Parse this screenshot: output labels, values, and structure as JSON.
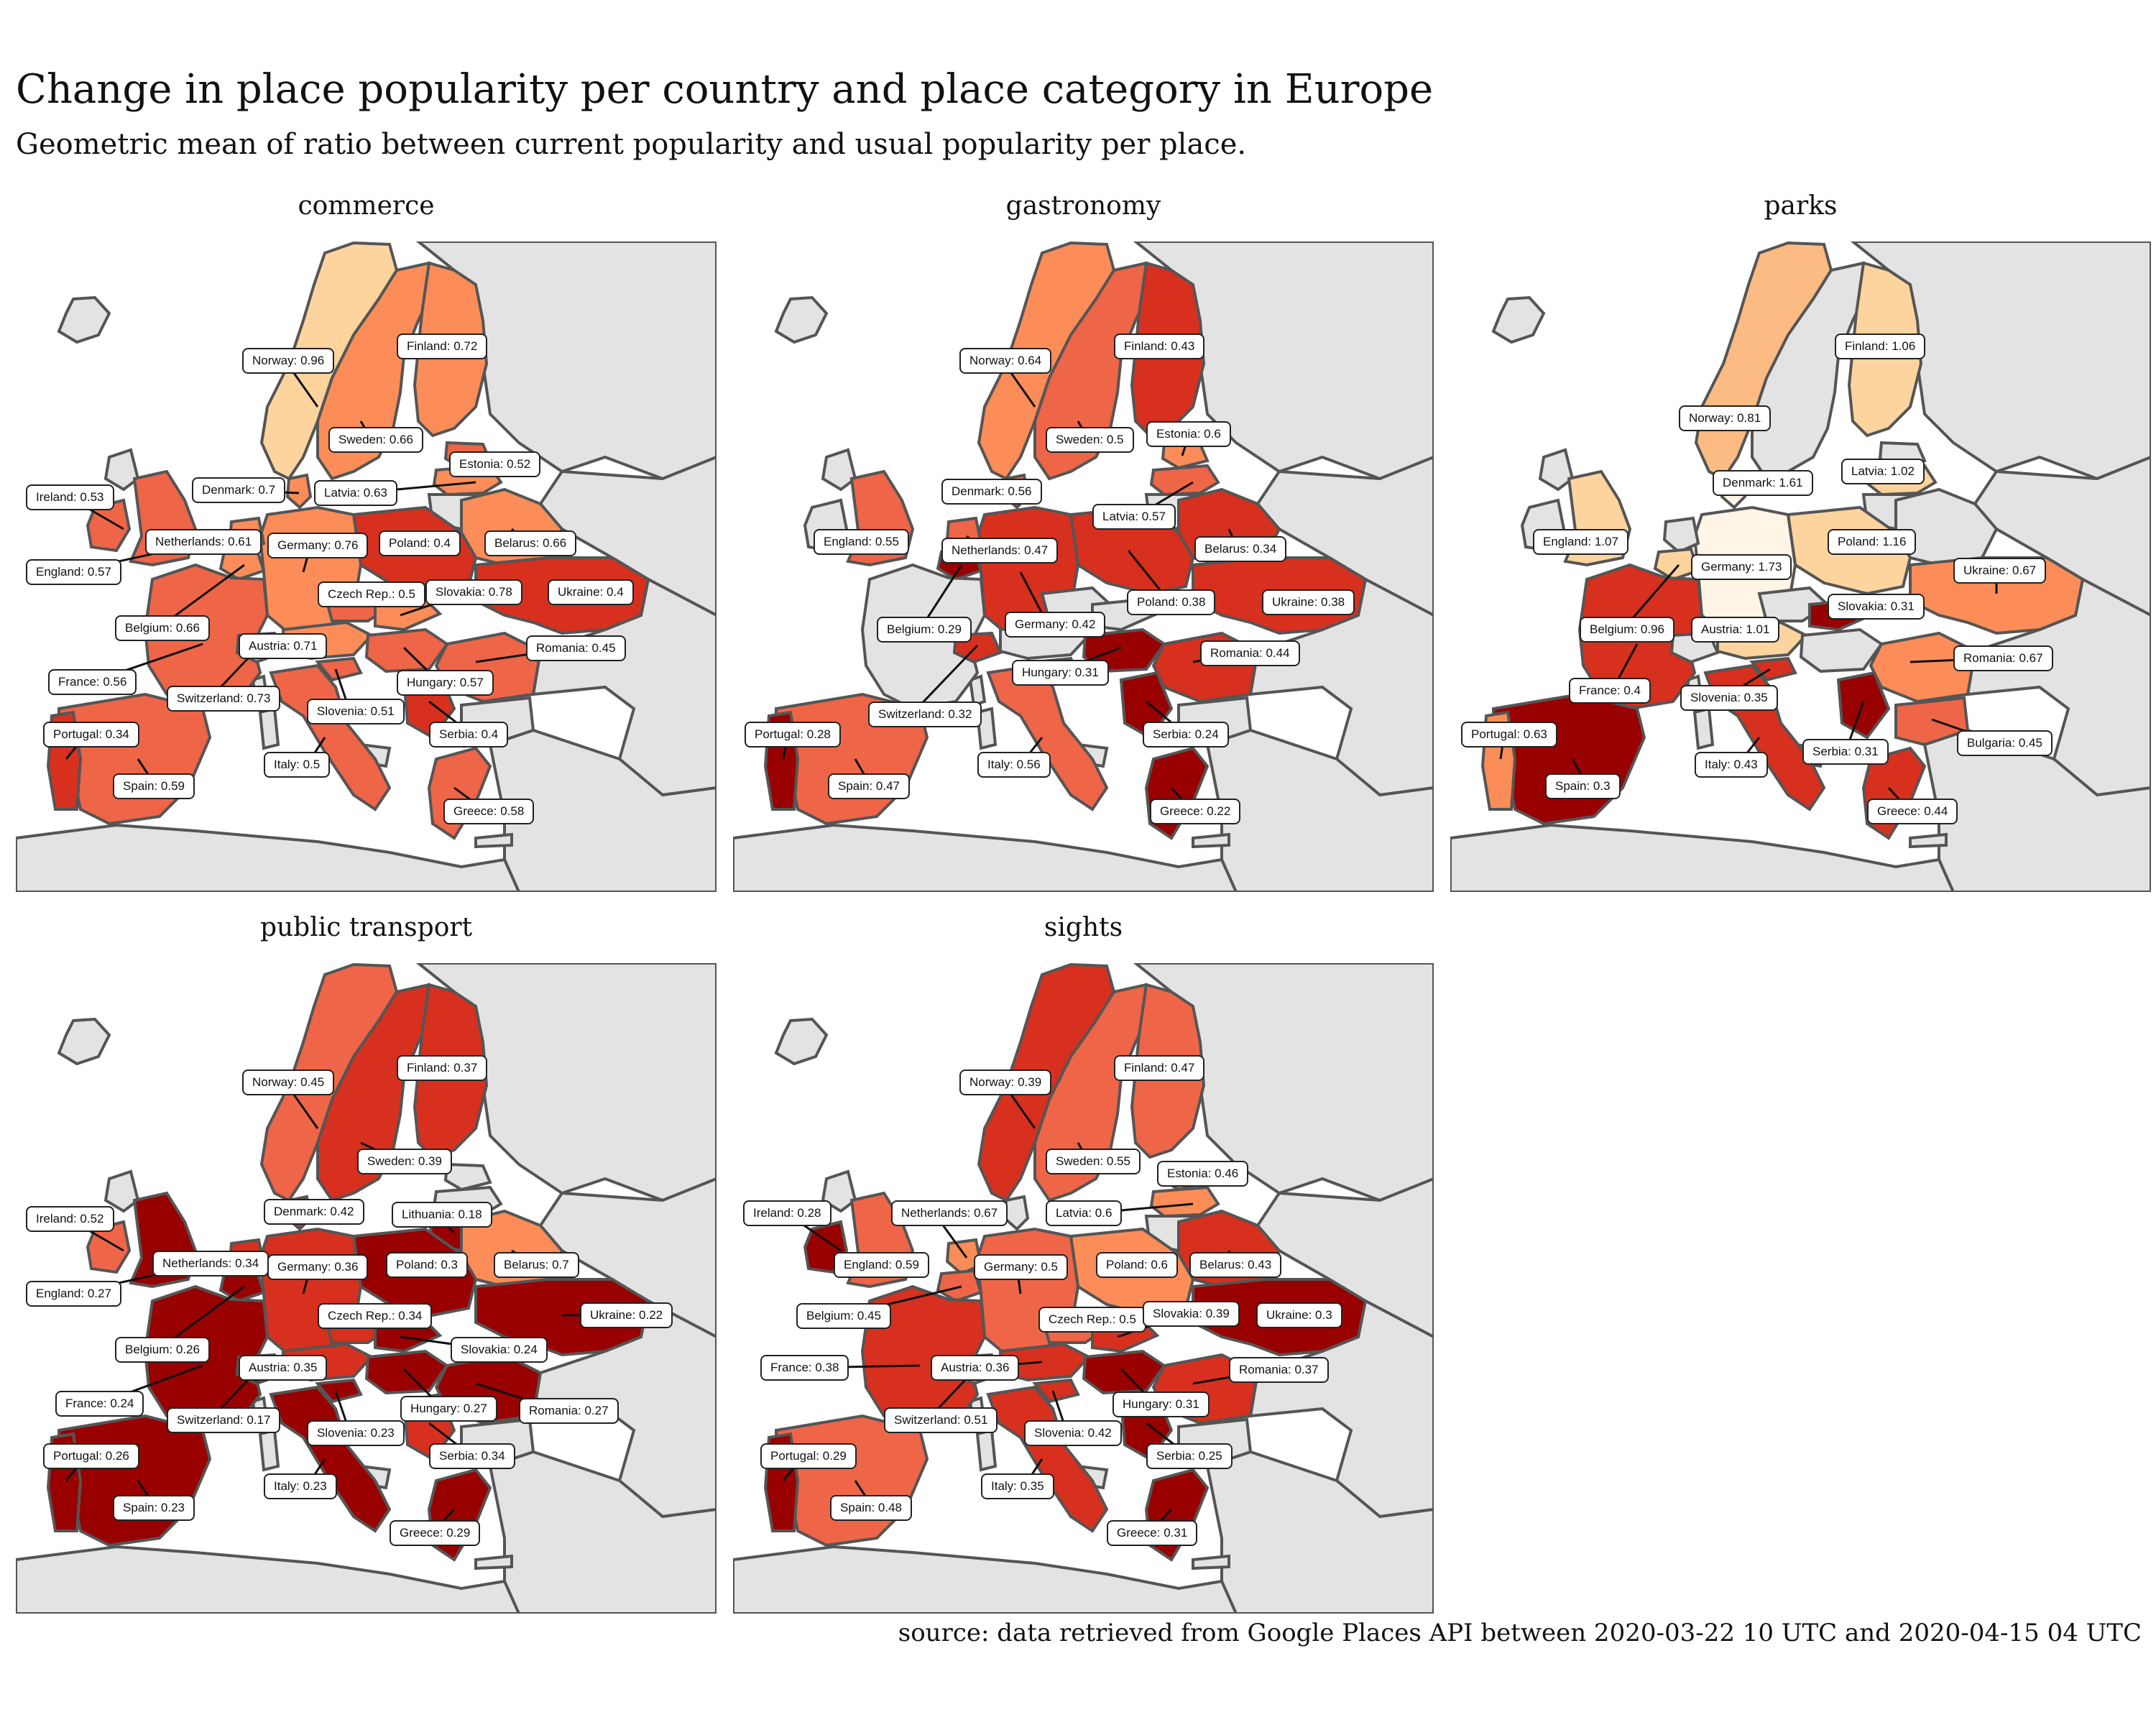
{
  "title": "Change in place popularity per country and place category in Europe",
  "subtitle": "Geometric mean of ratio between current popularity and usual popularity per place.",
  "caption": "source: data retrieved from Google Places API between 2020-03-22 10 UTC and 2020-04-15 04 UTC",
  "colors": {
    "land_other": "#e3e3e3",
    "border": "#555555",
    "sea": "#ffffff",
    "scale": [
      "#fff5e6",
      "#fdd49e",
      "#fdbb84",
      "#fc8d59",
      "#ef6548",
      "#d7301f",
      "#990000"
    ]
  },
  "panels": [
    {
      "title": "commerce",
      "labels": [
        {
          "text": "Norway: 0.96",
          "country": "Norway",
          "value": 0.96
        },
        {
          "text": "Finland: 0.72",
          "country": "Finland",
          "value": 0.72
        },
        {
          "text": "Sweden: 0.66",
          "country": "Sweden",
          "value": 0.66
        },
        {
          "text": "Estonia: 0.52",
          "country": "Estonia",
          "value": 0.52
        },
        {
          "text": "Denmark: 0.7",
          "country": "Denmark",
          "value": 0.7
        },
        {
          "text": "Latvia: 0.63",
          "country": "Latvia",
          "value": 0.63
        },
        {
          "text": "Ireland: 0.53",
          "country": "Ireland",
          "value": 0.53
        },
        {
          "text": "Netherlands: 0.61",
          "country": "Netherlands",
          "value": 0.61
        },
        {
          "text": "Germany: 0.76",
          "country": "Germany",
          "value": 0.76
        },
        {
          "text": "Poland: 0.4",
          "country": "Poland",
          "value": 0.4
        },
        {
          "text": "Belarus: 0.66",
          "country": "Belarus",
          "value": 0.66
        },
        {
          "text": "England: 0.57",
          "country": "England",
          "value": 0.57
        },
        {
          "text": "Czech Rep.: 0.5",
          "country": "Czech Rep.",
          "value": 0.5
        },
        {
          "text": "Slovakia: 0.78",
          "country": "Slovakia",
          "value": 0.78
        },
        {
          "text": "Ukraine: 0.4",
          "country": "Ukraine",
          "value": 0.4
        },
        {
          "text": "Belgium: 0.66",
          "country": "Belgium",
          "value": 0.66
        },
        {
          "text": "Austria: 0.71",
          "country": "Austria",
          "value": 0.71
        },
        {
          "text": "Romania: 0.45",
          "country": "Romania",
          "value": 0.45
        },
        {
          "text": "France: 0.56",
          "country": "France",
          "value": 0.56
        },
        {
          "text": "Hungary: 0.57",
          "country": "Hungary",
          "value": 0.57
        },
        {
          "text": "Switzerland: 0.73",
          "country": "Switzerland",
          "value": 0.73
        },
        {
          "text": "Slovenia: 0.51",
          "country": "Slovenia",
          "value": 0.51
        },
        {
          "text": "Portugal: 0.34",
          "country": "Portugal",
          "value": 0.34
        },
        {
          "text": "Serbia: 0.4",
          "country": "Serbia",
          "value": 0.4
        },
        {
          "text": "Italy: 0.5",
          "country": "Italy",
          "value": 0.5
        },
        {
          "text": "Spain: 0.59",
          "country": "Spain",
          "value": 0.59
        },
        {
          "text": "Greece: 0.58",
          "country": "Greece",
          "value": 0.58
        }
      ]
    },
    {
      "title": "gastronomy",
      "labels": [
        {
          "text": "Norway: 0.64",
          "country": "Norway",
          "value": 0.64
        },
        {
          "text": "Finland: 0.43",
          "country": "Finland",
          "value": 0.43
        },
        {
          "text": "Sweden: 0.5",
          "country": "Sweden",
          "value": 0.5
        },
        {
          "text": "Estonia: 0.6",
          "country": "Estonia",
          "value": 0.6
        },
        {
          "text": "Denmark: 0.56",
          "country": "Denmark",
          "value": 0.56
        },
        {
          "text": "Latvia: 0.57",
          "country": "Latvia",
          "value": 0.57
        },
        {
          "text": "England: 0.55",
          "country": "England",
          "value": 0.55
        },
        {
          "text": "Netherlands: 0.47",
          "country": "Netherlands",
          "value": 0.47
        },
        {
          "text": "Belarus: 0.34",
          "country": "Belarus",
          "value": 0.34
        },
        {
          "text": "Poland: 0.38",
          "country": "Poland",
          "value": 0.38
        },
        {
          "text": "Ukraine: 0.38",
          "country": "Ukraine",
          "value": 0.38
        },
        {
          "text": "Belgium: 0.29",
          "country": "Belgium",
          "value": 0.29
        },
        {
          "text": "Germany: 0.42",
          "country": "Germany",
          "value": 0.42
        },
        {
          "text": "Romania: 0.44",
          "country": "Romania",
          "value": 0.44
        },
        {
          "text": "Hungary: 0.31",
          "country": "Hungary",
          "value": 0.31
        },
        {
          "text": "Switzerland: 0.32",
          "country": "Switzerland",
          "value": 0.32
        },
        {
          "text": "Serbia: 0.24",
          "country": "Serbia",
          "value": 0.24
        },
        {
          "text": "Portugal: 0.28",
          "country": "Portugal",
          "value": 0.28
        },
        {
          "text": "Italy: 0.56",
          "country": "Italy",
          "value": 0.56
        },
        {
          "text": "Spain: 0.47",
          "country": "Spain",
          "value": 0.47
        },
        {
          "text": "Greece: 0.22",
          "country": "Greece",
          "value": 0.22
        }
      ]
    },
    {
      "title": "parks",
      "labels": [
        {
          "text": "Finland: 1.06",
          "country": "Finland",
          "value": 1.06
        },
        {
          "text": "Norway: 0.81",
          "country": "Norway",
          "value": 0.81
        },
        {
          "text": "Latvia: 1.02",
          "country": "Latvia",
          "value": 1.02
        },
        {
          "text": "Denmark: 1.61",
          "country": "Denmark",
          "value": 1.61
        },
        {
          "text": "England: 1.07",
          "country": "England",
          "value": 1.07
        },
        {
          "text": "Poland: 1.16",
          "country": "Poland",
          "value": 1.16
        },
        {
          "text": "Germany: 1.73",
          "country": "Germany",
          "value": 1.73
        },
        {
          "text": "Ukraine: 0.67",
          "country": "Ukraine",
          "value": 0.67
        },
        {
          "text": "Slovakia: 0.31",
          "country": "Slovakia",
          "value": 0.31
        },
        {
          "text": "Belgium: 0.96",
          "country": "Belgium",
          "value": 0.96
        },
        {
          "text": "Austria: 1.01",
          "country": "Austria",
          "value": 1.01
        },
        {
          "text": "Romania: 0.67",
          "country": "Romania",
          "value": 0.67
        },
        {
          "text": "France: 0.4",
          "country": "France",
          "value": 0.4
        },
        {
          "text": "Slovenia: 0.35",
          "country": "Slovenia",
          "value": 0.35
        },
        {
          "text": "Portugal: 0.63",
          "country": "Portugal",
          "value": 0.63
        },
        {
          "text": "Bulgaria: 0.45",
          "country": "Bulgaria",
          "value": 0.45
        },
        {
          "text": "Serbia: 0.31",
          "country": "Serbia",
          "value": 0.31
        },
        {
          "text": "Italy: 0.43",
          "country": "Italy",
          "value": 0.43
        },
        {
          "text": "Spain: 0.3",
          "country": "Spain",
          "value": 0.3
        },
        {
          "text": "Greece: 0.44",
          "country": "Greece",
          "value": 0.44
        }
      ]
    },
    {
      "title": "public transport",
      "labels": [
        {
          "text": "Norway: 0.45",
          "country": "Norway",
          "value": 0.45
        },
        {
          "text": "Finland: 0.37",
          "country": "Finland",
          "value": 0.37
        },
        {
          "text": "Sweden: 0.39",
          "country": "Sweden",
          "value": 0.39
        },
        {
          "text": "Denmark: 0.42",
          "country": "Denmark",
          "value": 0.42
        },
        {
          "text": "Lithuania: 0.18",
          "country": "Lithuania",
          "value": 0.18
        },
        {
          "text": "Ireland: 0.52",
          "country": "Ireland",
          "value": 0.52
        },
        {
          "text": "Netherlands: 0.34",
          "country": "Netherlands",
          "value": 0.34
        },
        {
          "text": "Germany: 0.36",
          "country": "Germany",
          "value": 0.36
        },
        {
          "text": "Poland: 0.3",
          "country": "Poland",
          "value": 0.3
        },
        {
          "text": "Belarus: 0.7",
          "country": "Belarus",
          "value": 0.7
        },
        {
          "text": "England: 0.27",
          "country": "England",
          "value": 0.27
        },
        {
          "text": "Czech Rep.: 0.34",
          "country": "Czech Rep.",
          "value": 0.34
        },
        {
          "text": "Ukraine: 0.22",
          "country": "Ukraine",
          "value": 0.22
        },
        {
          "text": "Belgium: 0.26",
          "country": "Belgium",
          "value": 0.26
        },
        {
          "text": "Slovakia: 0.24",
          "country": "Slovakia",
          "value": 0.24
        },
        {
          "text": "Austria: 0.35",
          "country": "Austria",
          "value": 0.35
        },
        {
          "text": "France: 0.24",
          "country": "France",
          "value": 0.24
        },
        {
          "text": "Hungary: 0.27",
          "country": "Hungary",
          "value": 0.27
        },
        {
          "text": "Romania: 0.27",
          "country": "Romania",
          "value": 0.27
        },
        {
          "text": "Switzerland: 0.17",
          "country": "Switzerland",
          "value": 0.17
        },
        {
          "text": "Slovenia: 0.23",
          "country": "Slovenia",
          "value": 0.23
        },
        {
          "text": "Portugal: 0.26",
          "country": "Portugal",
          "value": 0.26
        },
        {
          "text": "Serbia: 0.34",
          "country": "Serbia",
          "value": 0.34
        },
        {
          "text": "Italy: 0.23",
          "country": "Italy",
          "value": 0.23
        },
        {
          "text": "Spain: 0.23",
          "country": "Spain",
          "value": 0.23
        },
        {
          "text": "Greece: 0.29",
          "country": "Greece",
          "value": 0.29
        }
      ]
    },
    {
      "title": "sights",
      "labels": [
        {
          "text": "Norway: 0.39",
          "country": "Norway",
          "value": 0.39
        },
        {
          "text": "Finland: 0.47",
          "country": "Finland",
          "value": 0.47
        },
        {
          "text": "Sweden: 0.55",
          "country": "Sweden",
          "value": 0.55
        },
        {
          "text": "Estonia: 0.46",
          "country": "Estonia",
          "value": 0.46
        },
        {
          "text": "Ireland: 0.28",
          "country": "Ireland",
          "value": 0.28
        },
        {
          "text": "Netherlands: 0.67",
          "country": "Netherlands",
          "value": 0.67
        },
        {
          "text": "Latvia: 0.6",
          "country": "Latvia",
          "value": 0.6
        },
        {
          "text": "England: 0.59",
          "country": "England",
          "value": 0.59
        },
        {
          "text": "Germany: 0.5",
          "country": "Germany",
          "value": 0.5
        },
        {
          "text": "Poland: 0.6",
          "country": "Poland",
          "value": 0.6
        },
        {
          "text": "Belarus: 0.43",
          "country": "Belarus",
          "value": 0.43
        },
        {
          "text": "Belgium: 0.45",
          "country": "Belgium",
          "value": 0.45
        },
        {
          "text": "Czech Rep.: 0.5",
          "country": "Czech Rep.",
          "value": 0.5
        },
        {
          "text": "Slovakia: 0.39",
          "country": "Slovakia",
          "value": 0.39
        },
        {
          "text": "Ukraine: 0.3",
          "country": "Ukraine",
          "value": 0.3
        },
        {
          "text": "France: 0.38",
          "country": "France",
          "value": 0.38
        },
        {
          "text": "Austria: 0.36",
          "country": "Austria",
          "value": 0.36
        },
        {
          "text": "Romania: 0.37",
          "country": "Romania",
          "value": 0.37
        },
        {
          "text": "Hungary: 0.31",
          "country": "Hungary",
          "value": 0.31
        },
        {
          "text": "Switzerland: 0.51",
          "country": "Switzerland",
          "value": 0.51
        },
        {
          "text": "Slovenia: 0.42",
          "country": "Slovenia",
          "value": 0.42
        },
        {
          "text": "Portugal: 0.29",
          "country": "Portugal",
          "value": 0.29
        },
        {
          "text": "Serbia: 0.25",
          "country": "Serbia",
          "value": 0.25
        },
        {
          "text": "Italy: 0.35",
          "country": "Italy",
          "value": 0.35
        },
        {
          "text": "Spain: 0.48",
          "country": "Spain",
          "value": 0.48
        },
        {
          "text": "Greece: 0.31",
          "country": "Greece",
          "value": 0.31
        }
      ]
    }
  ]
}
